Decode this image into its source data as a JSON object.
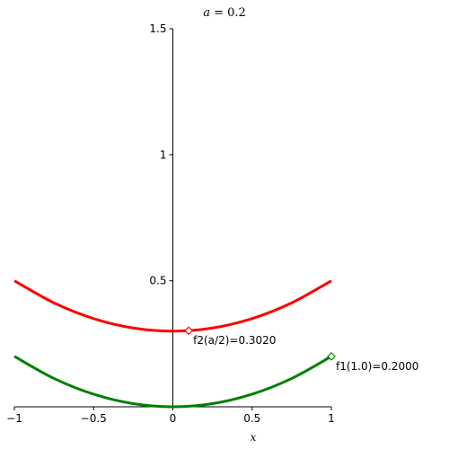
{
  "chart_data": {
    "type": "line",
    "title": {
      "var": "a",
      "rest": " = 0.2"
    },
    "xlabel": "x",
    "ylabel": "",
    "xlim": [
      -1,
      1
    ],
    "ylim": [
      0,
      1.5
    ],
    "x_ticks": [
      -1,
      -0.5,
      0,
      0.5,
      1
    ],
    "x_tick_labels": [
      "−1",
      "−0.5",
      "0",
      "0.5",
      "1"
    ],
    "y_ticks": [
      0.5,
      1,
      1.5
    ],
    "y_tick_labels": [
      "0.5",
      "1",
      "1.5"
    ],
    "grid": false,
    "series": [
      {
        "color": "#ff0000",
        "x": [
          -1,
          -0.75,
          -0.5,
          -0.25,
          0,
          0.25,
          0.5,
          0.75,
          1
        ],
        "y": [
          0.5,
          0.4125,
          0.35,
          0.3125,
          0.3,
          0.3125,
          0.35,
          0.4125,
          0.5
        ]
      },
      {
        "color": "#008000",
        "x": [
          -1,
          -0.75,
          -0.5,
          -0.25,
          0,
          0.25,
          0.5,
          0.75,
          1
        ],
        "y": [
          0.2,
          0.1125,
          0.05,
          0.0125,
          0.0,
          0.0125,
          0.05,
          0.1125,
          0.2
        ]
      }
    ],
    "markers": [
      {
        "x": 0.1,
        "y": 0.302,
        "color": "#ff0000",
        "label": "f2(a/2)=0.3020"
      },
      {
        "x": 1.0,
        "y": 0.2,
        "color": "#008000",
        "label": "f1(1.0)=0.2000"
      }
    ]
  }
}
